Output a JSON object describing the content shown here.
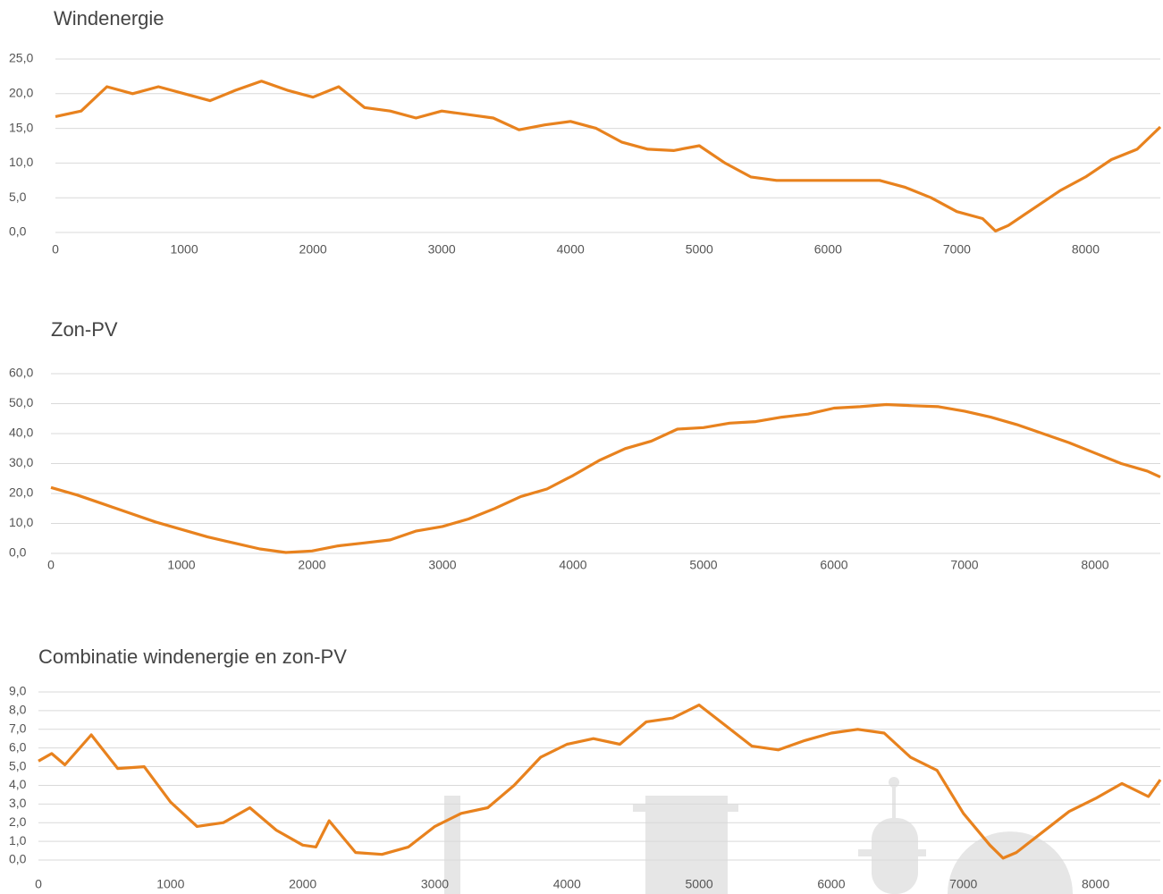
{
  "chart_data": [
    {
      "type": "line",
      "title": "Windenergie",
      "color": "#e8821e",
      "x": [
        0,
        200,
        400,
        600,
        800,
        1000,
        1200,
        1400,
        1600,
        1800,
        2000,
        2200,
        2400,
        2600,
        2800,
        3000,
        3200,
        3400,
        3600,
        3800,
        4000,
        4200,
        4400,
        4600,
        4800,
        5000,
        5200,
        5400,
        5600,
        5800,
        6000,
        6200,
        6400,
        6600,
        6800,
        7000,
        7200,
        7300,
        7400,
        7600,
        7800,
        8000,
        8200,
        8400,
        8580
      ],
      "values": [
        16.7,
        17.5,
        21.0,
        20.0,
        21.0,
        20.0,
        19.0,
        20.5,
        21.8,
        20.5,
        19.5,
        21.0,
        18.0,
        17.5,
        16.5,
        17.5,
        17.0,
        16.5,
        14.8,
        15.5,
        16.0,
        15.0,
        13.0,
        12.0,
        11.8,
        12.5,
        10.0,
        8.0,
        7.5,
        7.5,
        7.5,
        7.5,
        7.5,
        6.5,
        5.0,
        3.0,
        2.0,
        0.2,
        1.0,
        3.5,
        6.0,
        8.0,
        10.5,
        12.0,
        15.2
      ],
      "xlim": [
        0,
        8580
      ],
      "xticks": [
        0,
        1000,
        2000,
        3000,
        4000,
        5000,
        6000,
        7000,
        8000
      ],
      "ylim": [
        0,
        25
      ],
      "yticks": [
        {
          "value": 0,
          "label": "0,0"
        },
        {
          "value": 5,
          "label": "5,0"
        },
        {
          "value": 10,
          "label": "10,0"
        },
        {
          "value": 15,
          "label": "15,0"
        },
        {
          "value": 20,
          "label": "20,0"
        },
        {
          "value": 25,
          "label": "25,0"
        }
      ],
      "grid": true
    },
    {
      "type": "line",
      "title": "Zon-PV",
      "color": "#e8821e",
      "x": [
        0,
        200,
        400,
        600,
        800,
        1000,
        1200,
        1400,
        1600,
        1800,
        2000,
        2200,
        2400,
        2600,
        2800,
        3000,
        3200,
        3400,
        3600,
        3800,
        4000,
        4200,
        4400,
        4600,
        4800,
        5000,
        5200,
        5400,
        5600,
        5800,
        6000,
        6200,
        6400,
        6600,
        6800,
        7000,
        7200,
        7400,
        7600,
        7800,
        8000,
        8200,
        8400,
        8500
      ],
      "values": [
        22.0,
        19.5,
        16.5,
        13.5,
        10.5,
        8.0,
        5.5,
        3.5,
        1.5,
        0.3,
        0.8,
        2.5,
        3.5,
        4.5,
        7.5,
        9.0,
        11.5,
        15.0,
        19.0,
        21.5,
        26.0,
        31.0,
        35.0,
        37.5,
        41.5,
        42.0,
        43.5,
        44.0,
        45.5,
        46.5,
        48.5,
        49.0,
        49.7,
        49.3,
        49.0,
        47.5,
        45.5,
        43.0,
        40.0,
        37.0,
        33.5,
        30.0,
        27.5,
        25.5
      ],
      "xlim": [
        0,
        8500
      ],
      "xticks": [
        0,
        1000,
        2000,
        3000,
        4000,
        5000,
        6000,
        7000,
        8000
      ],
      "ylim": [
        0,
        60
      ],
      "yticks": [
        {
          "value": 0,
          "label": "0,0"
        },
        {
          "value": 10,
          "label": "10,0"
        },
        {
          "value": 20,
          "label": "20,0"
        },
        {
          "value": 30,
          "label": "30,0"
        },
        {
          "value": 40,
          "label": "40,0"
        },
        {
          "value": 50,
          "label": "50,0"
        },
        {
          "value": 60,
          "label": "60,0"
        }
      ],
      "grid": true
    },
    {
      "type": "line",
      "title": "Combinatie windenergie en zon-PV",
      "color": "#e8821e",
      "x": [
        0,
        100,
        200,
        400,
        600,
        800,
        1000,
        1200,
        1400,
        1600,
        1800,
        2000,
        2100,
        2200,
        2400,
        2600,
        2800,
        3000,
        3200,
        3400,
        3600,
        3800,
        4000,
        4200,
        4400,
        4600,
        4800,
        5000,
        5200,
        5400,
        5600,
        5800,
        6000,
        6200,
        6400,
        6600,
        6800,
        7000,
        7200,
        7300,
        7400,
        7600,
        7800,
        8000,
        8200,
        8400,
        8490
      ],
      "values": [
        5.3,
        5.7,
        5.1,
        6.7,
        4.9,
        5.0,
        3.1,
        1.8,
        2.0,
        2.8,
        1.6,
        0.8,
        0.7,
        2.1,
        0.4,
        0.3,
        0.7,
        1.8,
        2.5,
        2.8,
        4.0,
        5.5,
        6.2,
        6.5,
        6.2,
        7.4,
        7.6,
        8.3,
        7.2,
        6.1,
        5.9,
        6.4,
        6.8,
        7.0,
        6.8,
        5.5,
        4.8,
        2.5,
        0.8,
        0.1,
        0.4,
        1.5,
        2.6,
        3.3,
        4.1,
        3.4,
        4.3
      ],
      "xlim": [
        0,
        8490
      ],
      "xticks": [
        0,
        1000,
        2000,
        3000,
        4000,
        5000,
        6000,
        7000,
        8000
      ],
      "ylim": [
        0,
        9
      ],
      "yticks": [
        {
          "value": 0,
          "label": "0,0"
        },
        {
          "value": 1,
          "label": "1,0"
        },
        {
          "value": 2,
          "label": "2,0"
        },
        {
          "value": 3,
          "label": "3,0"
        },
        {
          "value": 4,
          "label": "4,0"
        },
        {
          "value": 5,
          "label": "5,0"
        },
        {
          "value": 6,
          "label": "6,0"
        },
        {
          "value": 7,
          "label": "7,0"
        },
        {
          "value": 8,
          "label": "8,0"
        },
        {
          "value": 9,
          "label": "9,0"
        }
      ],
      "grid": true
    }
  ]
}
